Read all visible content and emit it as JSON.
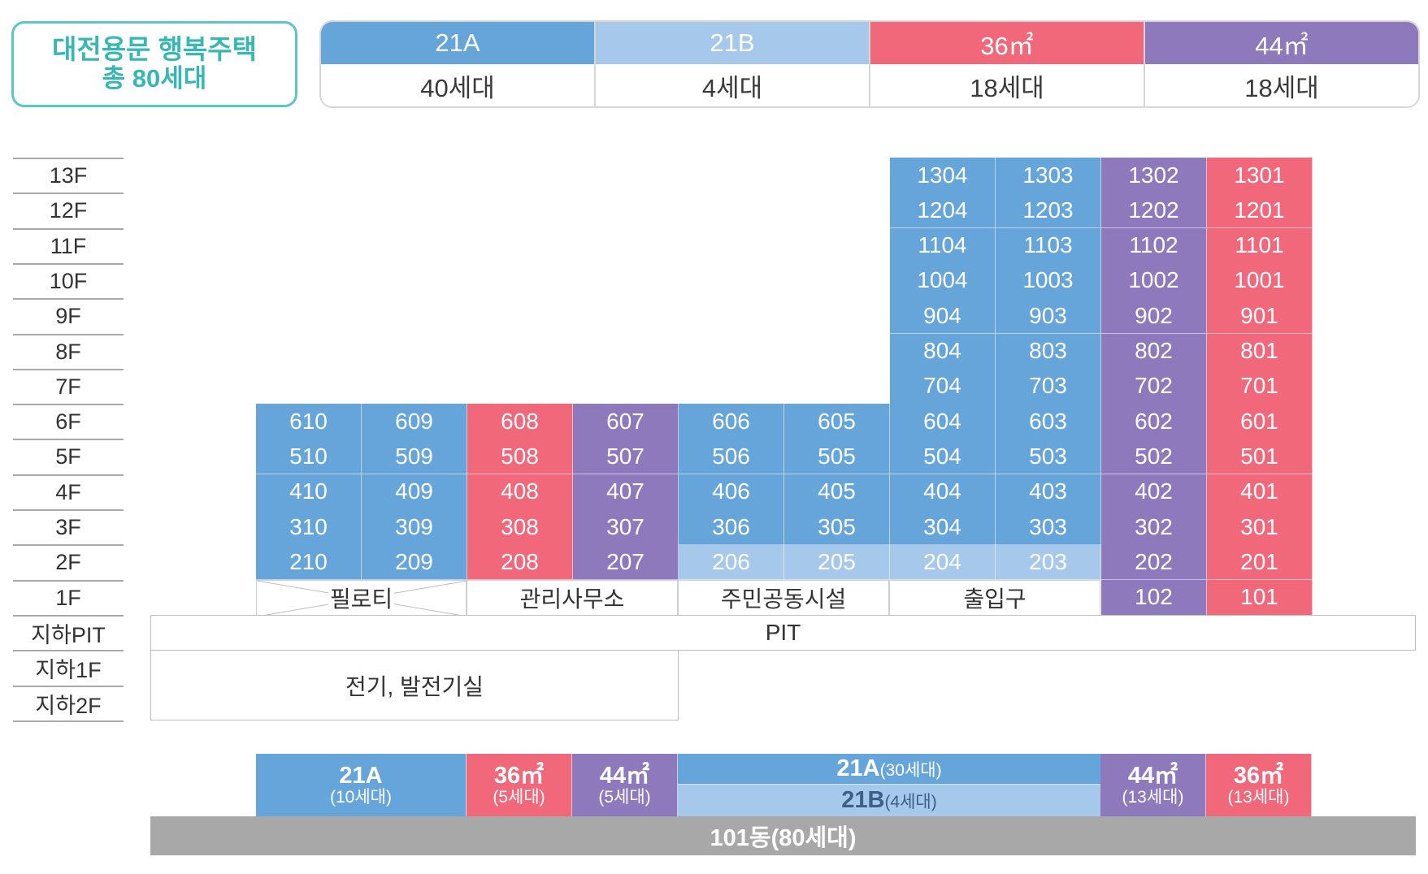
{
  "title": {
    "line1": "대전용문 행복주택",
    "line2": "총 80세대"
  },
  "colors": {
    "21A": "#66a5da",
    "21B": "#a6c8ea",
    "36": "#f0687a",
    "44": "#8e79bc",
    "base": "#a8a8a8",
    "accent": "#37b7b3"
  },
  "unit_types": [
    {
      "label": "21A",
      "count": "40세대",
      "color": "#66a5da"
    },
    {
      "label": "21B",
      "count": "4세대",
      "color": "#a6c8ea"
    },
    {
      "label": "36㎡",
      "count": "18세대",
      "color": "#f0687a"
    },
    {
      "label": "44㎡",
      "count": "18세대",
      "color": "#8e79bc"
    }
  ],
  "floors": [
    "13F",
    "12F",
    "11F",
    "10F",
    "9F",
    "8F",
    "7F",
    "6F",
    "5F",
    "4F",
    "3F",
    "2F",
    "1F",
    "지하PIT",
    "지하1F",
    "지하2F"
  ],
  "tower_rows": [
    {
      "floor": "13F",
      "units": [
        [
          "1304",
          "21A"
        ],
        [
          "1303",
          "21A"
        ],
        [
          "1302",
          "44"
        ],
        [
          "1301",
          "36"
        ]
      ]
    },
    {
      "floor": "12F",
      "units": [
        [
          "1204",
          "21A"
        ],
        [
          "1203",
          "21A"
        ],
        [
          "1202",
          "44"
        ],
        [
          "1201",
          "36"
        ]
      ]
    },
    {
      "floor": "11F",
      "units": [
        [
          "1104",
          "21A"
        ],
        [
          "1103",
          "21A"
        ],
        [
          "1102",
          "44"
        ],
        [
          "1101",
          "36"
        ]
      ]
    },
    {
      "floor": "10F",
      "units": [
        [
          "1004",
          "21A"
        ],
        [
          "1003",
          "21A"
        ],
        [
          "1002",
          "44"
        ],
        [
          "1001",
          "36"
        ]
      ]
    },
    {
      "floor": "9F",
      "units": [
        [
          "904",
          "21A"
        ],
        [
          "903",
          "21A"
        ],
        [
          "902",
          "44"
        ],
        [
          "901",
          "36"
        ]
      ]
    },
    {
      "floor": "8F",
      "units": [
        [
          "804",
          "21A"
        ],
        [
          "803",
          "21A"
        ],
        [
          "802",
          "44"
        ],
        [
          "801",
          "36"
        ]
      ]
    },
    {
      "floor": "7F",
      "units": [
        [
          "704",
          "21A"
        ],
        [
          "703",
          "21A"
        ],
        [
          "702",
          "44"
        ],
        [
          "701",
          "36"
        ]
      ]
    }
  ],
  "wide_rows": [
    {
      "floor": "6F",
      "units": [
        [
          "610",
          "21A"
        ],
        [
          "609",
          "21A"
        ],
        [
          "608",
          "36"
        ],
        [
          "607",
          "44"
        ],
        [
          "606",
          "21A"
        ],
        [
          "605",
          "21A"
        ],
        [
          "604",
          "21A"
        ],
        [
          "603",
          "21A"
        ],
        [
          "602",
          "44"
        ],
        [
          "601",
          "36"
        ]
      ]
    },
    {
      "floor": "5F",
      "units": [
        [
          "510",
          "21A"
        ],
        [
          "509",
          "21A"
        ],
        [
          "508",
          "36"
        ],
        [
          "507",
          "44"
        ],
        [
          "506",
          "21A"
        ],
        [
          "505",
          "21A"
        ],
        [
          "504",
          "21A"
        ],
        [
          "503",
          "21A"
        ],
        [
          "502",
          "44"
        ],
        [
          "501",
          "36"
        ]
      ]
    },
    {
      "floor": "4F",
      "units": [
        [
          "410",
          "21A"
        ],
        [
          "409",
          "21A"
        ],
        [
          "408",
          "36"
        ],
        [
          "407",
          "44"
        ],
        [
          "406",
          "21A"
        ],
        [
          "405",
          "21A"
        ],
        [
          "404",
          "21A"
        ],
        [
          "403",
          "21A"
        ],
        [
          "402",
          "44"
        ],
        [
          "401",
          "36"
        ]
      ]
    },
    {
      "floor": "3F",
      "units": [
        [
          "310",
          "21A"
        ],
        [
          "309",
          "21A"
        ],
        [
          "308",
          "36"
        ],
        [
          "307",
          "44"
        ],
        [
          "306",
          "21A"
        ],
        [
          "305",
          "21A"
        ],
        [
          "304",
          "21A"
        ],
        [
          "303",
          "21A"
        ],
        [
          "302",
          "44"
        ],
        [
          "301",
          "36"
        ]
      ]
    },
    {
      "floor": "2F",
      "units": [
        [
          "210",
          "21A"
        ],
        [
          "209",
          "21A"
        ],
        [
          "208",
          "36"
        ],
        [
          "207",
          "44"
        ],
        [
          "206",
          "21B"
        ],
        [
          "205",
          "21B"
        ],
        [
          "204",
          "21B"
        ],
        [
          "203",
          "21B"
        ],
        [
          "202",
          "44"
        ],
        [
          "201",
          "36"
        ]
      ]
    }
  ],
  "first_floor": {
    "facilities": [
      "필로티",
      "관리사무소",
      "주민공동시설",
      "출입구"
    ],
    "units": [
      [
        "102",
        "44"
      ],
      [
        "101",
        "36"
      ]
    ]
  },
  "basement": {
    "pit": "PIT",
    "plant": "전기, 발전기실"
  },
  "summary": {
    "left": [
      {
        "type": "21A",
        "label": "21A",
        "count": "(10세대)"
      },
      {
        "type": "36",
        "label": "36㎡",
        "count": "(5세대)"
      },
      {
        "type": "44",
        "label": "44㎡",
        "count": "(5세대)"
      }
    ],
    "center": [
      {
        "type": "21A",
        "label": "21A",
        "count": "(30세대)"
      },
      {
        "type": "21B",
        "label": "21B",
        "count": "(4세대)"
      }
    ],
    "right": [
      {
        "type": "44",
        "label": "44㎡",
        "count": "(13세대)"
      },
      {
        "type": "36",
        "label": "36㎡",
        "count": "(13세대)"
      }
    ]
  },
  "building": "101동(80세대)"
}
